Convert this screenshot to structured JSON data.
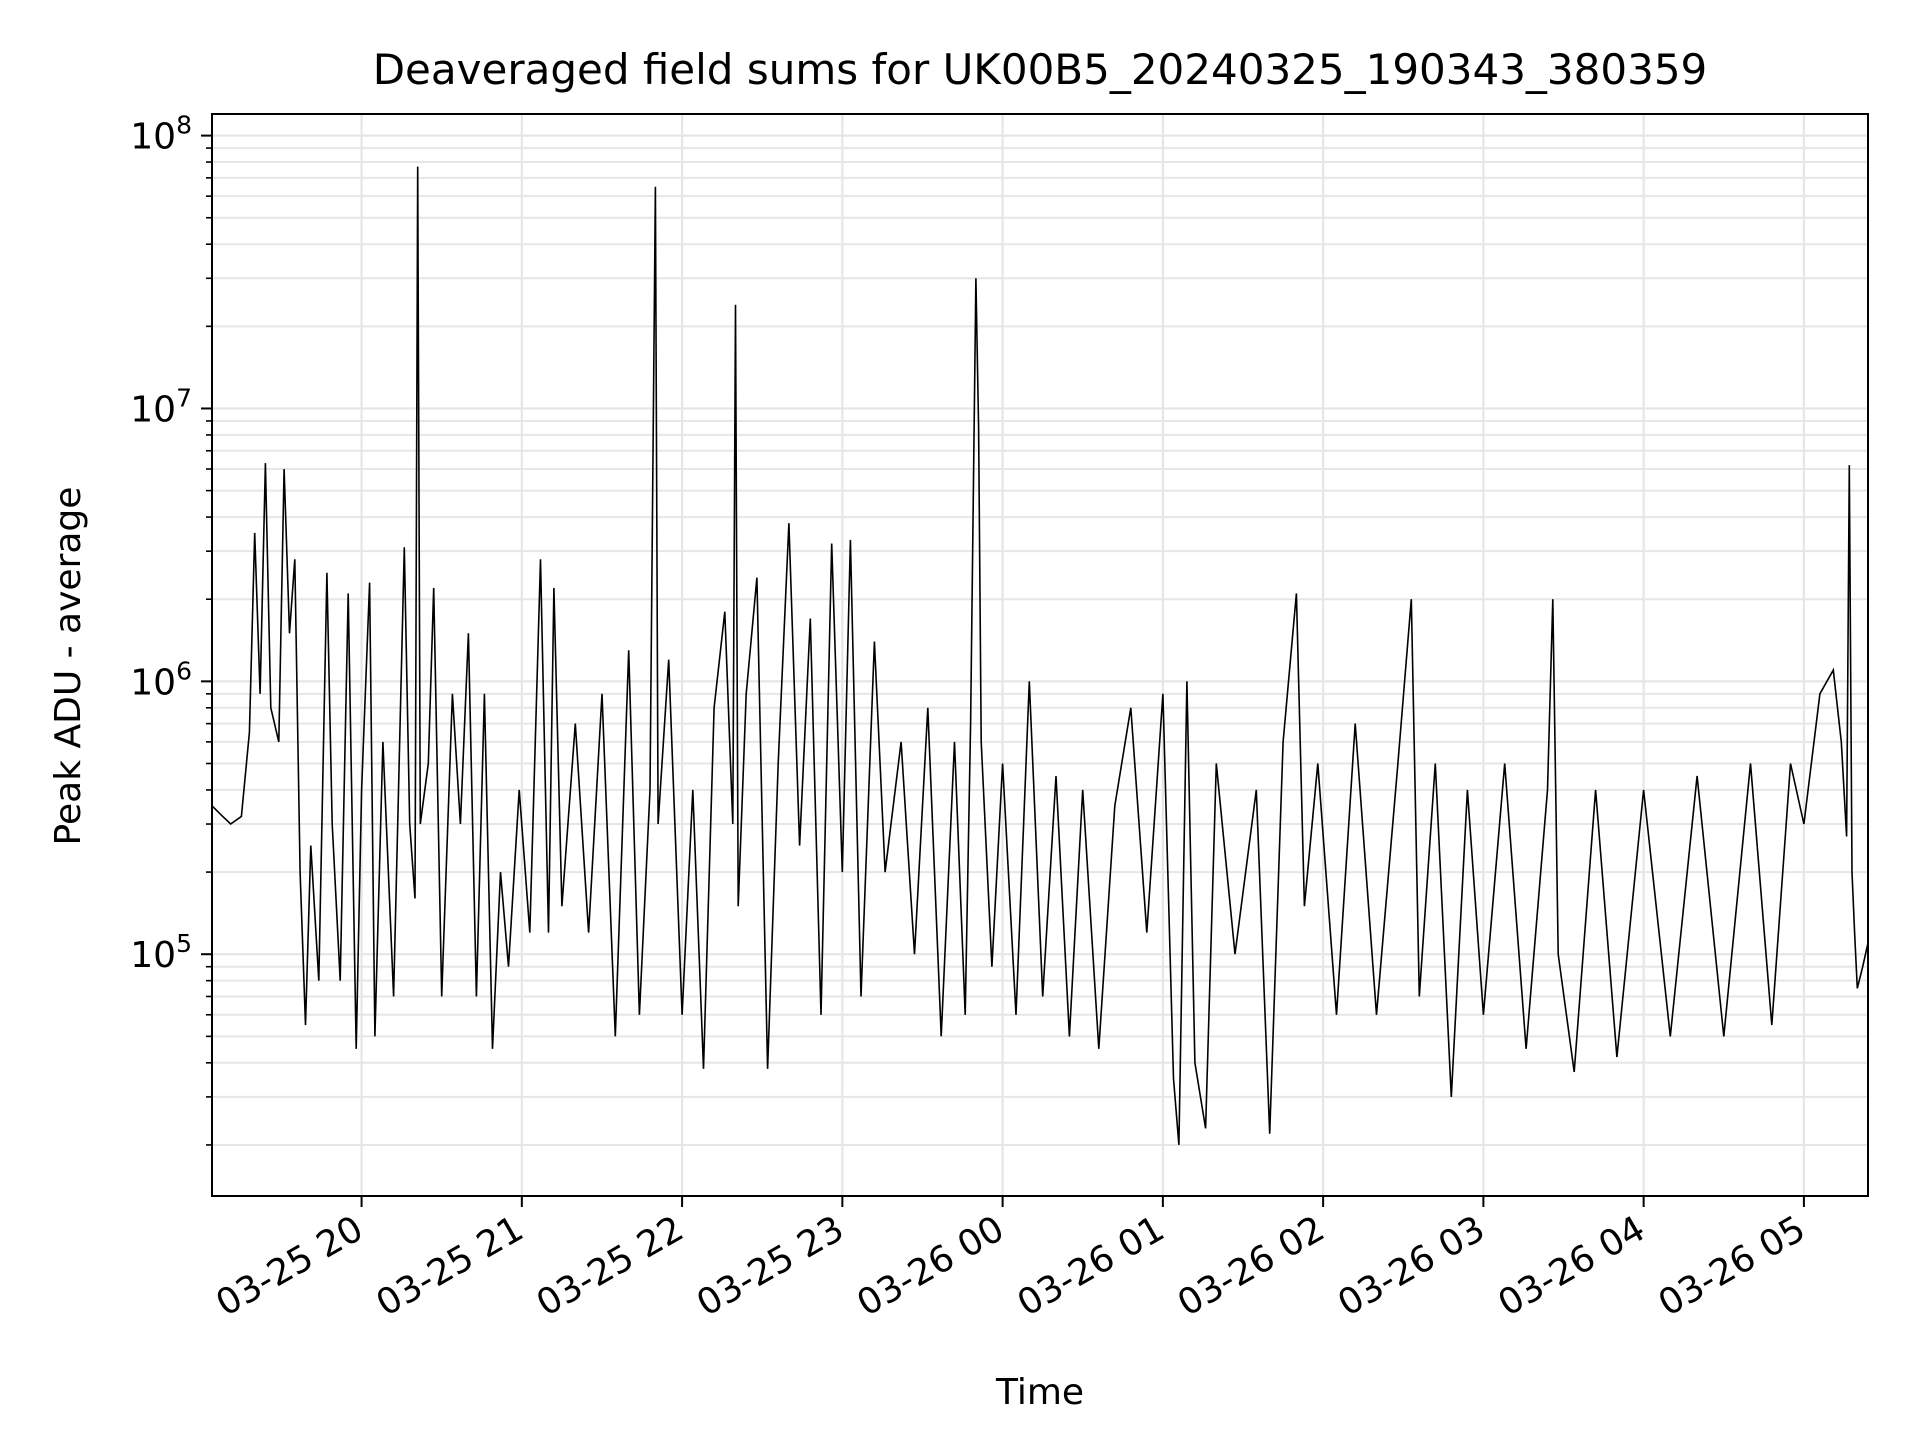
{
  "chart_data": {
    "type": "line",
    "title": "Deaveraged field sums for UK00B5_20240325_190343_380359",
    "xlabel": "Time",
    "ylabel": "Peak ADU - average",
    "y_scale": "log",
    "ylim": [
      13000,
      120000000
    ],
    "xlim": [
      "2024-03-25 19:04",
      "2024-03-26 05:24"
    ],
    "grid": true,
    "line_color": "#000000",
    "grid_color": "#e6e6e6",
    "x_ticks": [
      {
        "value": "2024-03-25 20:00",
        "label": "03-25 20"
      },
      {
        "value": "2024-03-25 21:00",
        "label": "03-25 21"
      },
      {
        "value": "2024-03-25 22:00",
        "label": "03-25 22"
      },
      {
        "value": "2024-03-25 23:00",
        "label": "03-25 23"
      },
      {
        "value": "2024-03-26 00:00",
        "label": "03-26 00"
      },
      {
        "value": "2024-03-26 01:00",
        "label": "03-26 01"
      },
      {
        "value": "2024-03-26 02:00",
        "label": "03-26 02"
      },
      {
        "value": "2024-03-26 03:00",
        "label": "03-26 03"
      },
      {
        "value": "2024-03-26 04:00",
        "label": "03-26 04"
      },
      {
        "value": "2024-03-26 05:00",
        "label": "03-26 05"
      }
    ],
    "y_ticks": [
      {
        "value": 100000,
        "base": "10",
        "exp": "5"
      },
      {
        "value": 1000000,
        "base": "10",
        "exp": "6"
      },
      {
        "value": 10000000,
        "base": "10",
        "exp": "7"
      },
      {
        "value": 100000000,
        "base": "10",
        "exp": "8"
      }
    ],
    "series": [
      {
        "points": [
          [
            "2024-03-25 19:04",
            350000
          ],
          [
            "2024-03-25 19:08",
            320000
          ],
          [
            "2024-03-25 19:11",
            300000
          ],
          [
            "2024-03-25 19:15",
            320000
          ],
          [
            "2024-03-25 19:18",
            650000
          ],
          [
            "2024-03-25 19:20",
            3500000
          ],
          [
            "2024-03-25 19:22",
            900000
          ],
          [
            "2024-03-25 19:24",
            6300000
          ],
          [
            "2024-03-25 19:26",
            800000
          ],
          [
            "2024-03-25 19:29",
            600000
          ],
          [
            "2024-03-25 19:31",
            6000000
          ],
          [
            "2024-03-25 19:33",
            1500000
          ],
          [
            "2024-03-25 19:35",
            2800000
          ],
          [
            "2024-03-25 19:37",
            200000
          ],
          [
            "2024-03-25 19:39",
            55000
          ],
          [
            "2024-03-25 19:41",
            250000
          ],
          [
            "2024-03-25 19:44",
            80000
          ],
          [
            "2024-03-25 19:47",
            2500000
          ],
          [
            "2024-03-25 19:49",
            300000
          ],
          [
            "2024-03-25 19:52",
            80000
          ],
          [
            "2024-03-25 19:55",
            2100000
          ],
          [
            "2024-03-25 19:58",
            45000
          ],
          [
            "2024-03-25 20:00",
            400000
          ],
          [
            "2024-03-25 20:03",
            2300000
          ],
          [
            "2024-03-25 20:05",
            50000
          ],
          [
            "2024-03-25 20:08",
            600000
          ],
          [
            "2024-03-25 20:12",
            70000
          ],
          [
            "2024-03-25 20:16",
            3100000
          ],
          [
            "2024-03-25 20:18",
            300000
          ],
          [
            "2024-03-25 20:20",
            160000
          ],
          [
            "2024-03-25 20:21",
            77000000
          ],
          [
            "2024-03-25 20:22",
            300000
          ],
          [
            "2024-03-25 20:25",
            500000
          ],
          [
            "2024-03-25 20:27",
            2200000
          ],
          [
            "2024-03-25 20:30",
            70000
          ],
          [
            "2024-03-25 20:34",
            900000
          ],
          [
            "2024-03-25 20:37",
            300000
          ],
          [
            "2024-03-25 20:40",
            1500000
          ],
          [
            "2024-03-25 20:43",
            70000
          ],
          [
            "2024-03-25 20:46",
            900000
          ],
          [
            "2024-03-25 20:49",
            45000
          ],
          [
            "2024-03-25 20:52",
            200000
          ],
          [
            "2024-03-25 20:55",
            90000
          ],
          [
            "2024-03-25 20:59",
            400000
          ],
          [
            "2024-03-25 21:03",
            120000
          ],
          [
            "2024-03-25 21:07",
            2800000
          ],
          [
            "2024-03-25 21:10",
            120000
          ],
          [
            "2024-03-25 21:12",
            2200000
          ],
          [
            "2024-03-25 21:15",
            150000
          ],
          [
            "2024-03-25 21:20",
            700000
          ],
          [
            "2024-03-25 21:25",
            120000
          ],
          [
            "2024-03-25 21:30",
            900000
          ],
          [
            "2024-03-25 21:35",
            50000
          ],
          [
            "2024-03-25 21:40",
            1300000
          ],
          [
            "2024-03-25 21:44",
            60000
          ],
          [
            "2024-03-25 21:48",
            400000
          ],
          [
            "2024-03-25 21:50",
            65000000
          ],
          [
            "2024-03-25 21:51",
            300000
          ],
          [
            "2024-03-25 21:55",
            1200000
          ],
          [
            "2024-03-25 22:00",
            60000
          ],
          [
            "2024-03-25 22:04",
            400000
          ],
          [
            "2024-03-25 22:08",
            38000
          ],
          [
            "2024-03-25 22:12",
            800000
          ],
          [
            "2024-03-25 22:16",
            1800000
          ],
          [
            "2024-03-25 22:19",
            300000
          ],
          [
            "2024-03-25 22:20",
            24000000
          ],
          [
            "2024-03-25 22:21",
            150000
          ],
          [
            "2024-03-25 22:24",
            900000
          ],
          [
            "2024-03-25 22:28",
            2400000
          ],
          [
            "2024-03-25 22:32",
            38000
          ],
          [
            "2024-03-25 22:36",
            500000
          ],
          [
            "2024-03-25 22:40",
            3800000
          ],
          [
            "2024-03-25 22:44",
            250000
          ],
          [
            "2024-03-25 22:48",
            1700000
          ],
          [
            "2024-03-25 22:52",
            60000
          ],
          [
            "2024-03-25 22:56",
            3200000
          ],
          [
            "2024-03-25 23:00",
            200000
          ],
          [
            "2024-03-25 23:03",
            3300000
          ],
          [
            "2024-03-25 23:07",
            70000
          ],
          [
            "2024-03-25 23:12",
            1400000
          ],
          [
            "2024-03-25 23:16",
            200000
          ],
          [
            "2024-03-25 23:22",
            600000
          ],
          [
            "2024-03-25 23:27",
            100000
          ],
          [
            "2024-03-25 23:32",
            800000
          ],
          [
            "2024-03-25 23:37",
            50000
          ],
          [
            "2024-03-25 23:42",
            600000
          ],
          [
            "2024-03-25 23:46",
            60000
          ],
          [
            "2024-03-25 23:48",
            700000
          ],
          [
            "2024-03-25 23:50",
            30000000
          ],
          [
            "2024-03-25 23:51",
            8500000
          ],
          [
            "2024-03-25 23:52",
            600000
          ],
          [
            "2024-03-25 23:56",
            90000
          ],
          [
            "2024-03-26 00:00",
            500000
          ],
          [
            "2024-03-26 00:05",
            60000
          ],
          [
            "2024-03-26 00:10",
            1000000
          ],
          [
            "2024-03-26 00:15",
            70000
          ],
          [
            "2024-03-26 00:20",
            450000
          ],
          [
            "2024-03-26 00:25",
            50000
          ],
          [
            "2024-03-26 00:30",
            400000
          ],
          [
            "2024-03-26 00:36",
            45000
          ],
          [
            "2024-03-26 00:42",
            350000
          ],
          [
            "2024-03-26 00:48",
            800000
          ],
          [
            "2024-03-26 00:54",
            120000
          ],
          [
            "2024-03-26 01:00",
            900000
          ],
          [
            "2024-03-26 01:04",
            35000
          ],
          [
            "2024-03-26 01:06",
            20000
          ],
          [
            "2024-03-26 01:09",
            1000000
          ],
          [
            "2024-03-26 01:12",
            40000
          ],
          [
            "2024-03-26 01:16",
            23000
          ],
          [
            "2024-03-26 01:20",
            500000
          ],
          [
            "2024-03-26 01:27",
            100000
          ],
          [
            "2024-03-26 01:35",
            400000
          ],
          [
            "2024-03-26 01:40",
            22000
          ],
          [
            "2024-03-26 01:45",
            600000
          ],
          [
            "2024-03-26 01:50",
            2100000
          ],
          [
            "2024-03-26 01:53",
            150000
          ],
          [
            "2024-03-26 01:58",
            500000
          ],
          [
            "2024-03-26 02:05",
            60000
          ],
          [
            "2024-03-26 02:12",
            700000
          ],
          [
            "2024-03-26 02:20",
            60000
          ],
          [
            "2024-03-26 02:28",
            500000
          ],
          [
            "2024-03-26 02:33",
            2000000
          ],
          [
            "2024-03-26 02:36",
            70000
          ],
          [
            "2024-03-26 02:42",
            500000
          ],
          [
            "2024-03-26 02:48",
            30000
          ],
          [
            "2024-03-26 02:54",
            400000
          ],
          [
            "2024-03-26 03:00",
            60000
          ],
          [
            "2024-03-26 03:08",
            500000
          ],
          [
            "2024-03-26 03:16",
            45000
          ],
          [
            "2024-03-26 03:24",
            400000
          ],
          [
            "2024-03-26 03:26",
            2000000
          ],
          [
            "2024-03-26 03:28",
            100000
          ],
          [
            "2024-03-26 03:34",
            37000
          ],
          [
            "2024-03-26 03:42",
            400000
          ],
          [
            "2024-03-26 03:50",
            42000
          ],
          [
            "2024-03-26 04:00",
            400000
          ],
          [
            "2024-03-26 04:10",
            50000
          ],
          [
            "2024-03-26 04:20",
            450000
          ],
          [
            "2024-03-26 04:30",
            50000
          ],
          [
            "2024-03-26 04:40",
            500000
          ],
          [
            "2024-03-26 04:48",
            55000
          ],
          [
            "2024-03-26 04:55",
            500000
          ],
          [
            "2024-03-26 05:00",
            300000
          ],
          [
            "2024-03-26 05:06",
            900000
          ],
          [
            "2024-03-26 05:11",
            1100000
          ],
          [
            "2024-03-26 05:14",
            600000
          ],
          [
            "2024-03-26 05:16",
            270000
          ],
          [
            "2024-03-26 05:17",
            6200000
          ],
          [
            "2024-03-26 05:18",
            200000
          ],
          [
            "2024-03-26 05:19",
            120000
          ],
          [
            "2024-03-26 05:20",
            75000
          ],
          [
            "2024-03-26 05:22",
            90000
          ],
          [
            "2024-03-26 05:24",
            110000
          ]
        ]
      }
    ]
  }
}
